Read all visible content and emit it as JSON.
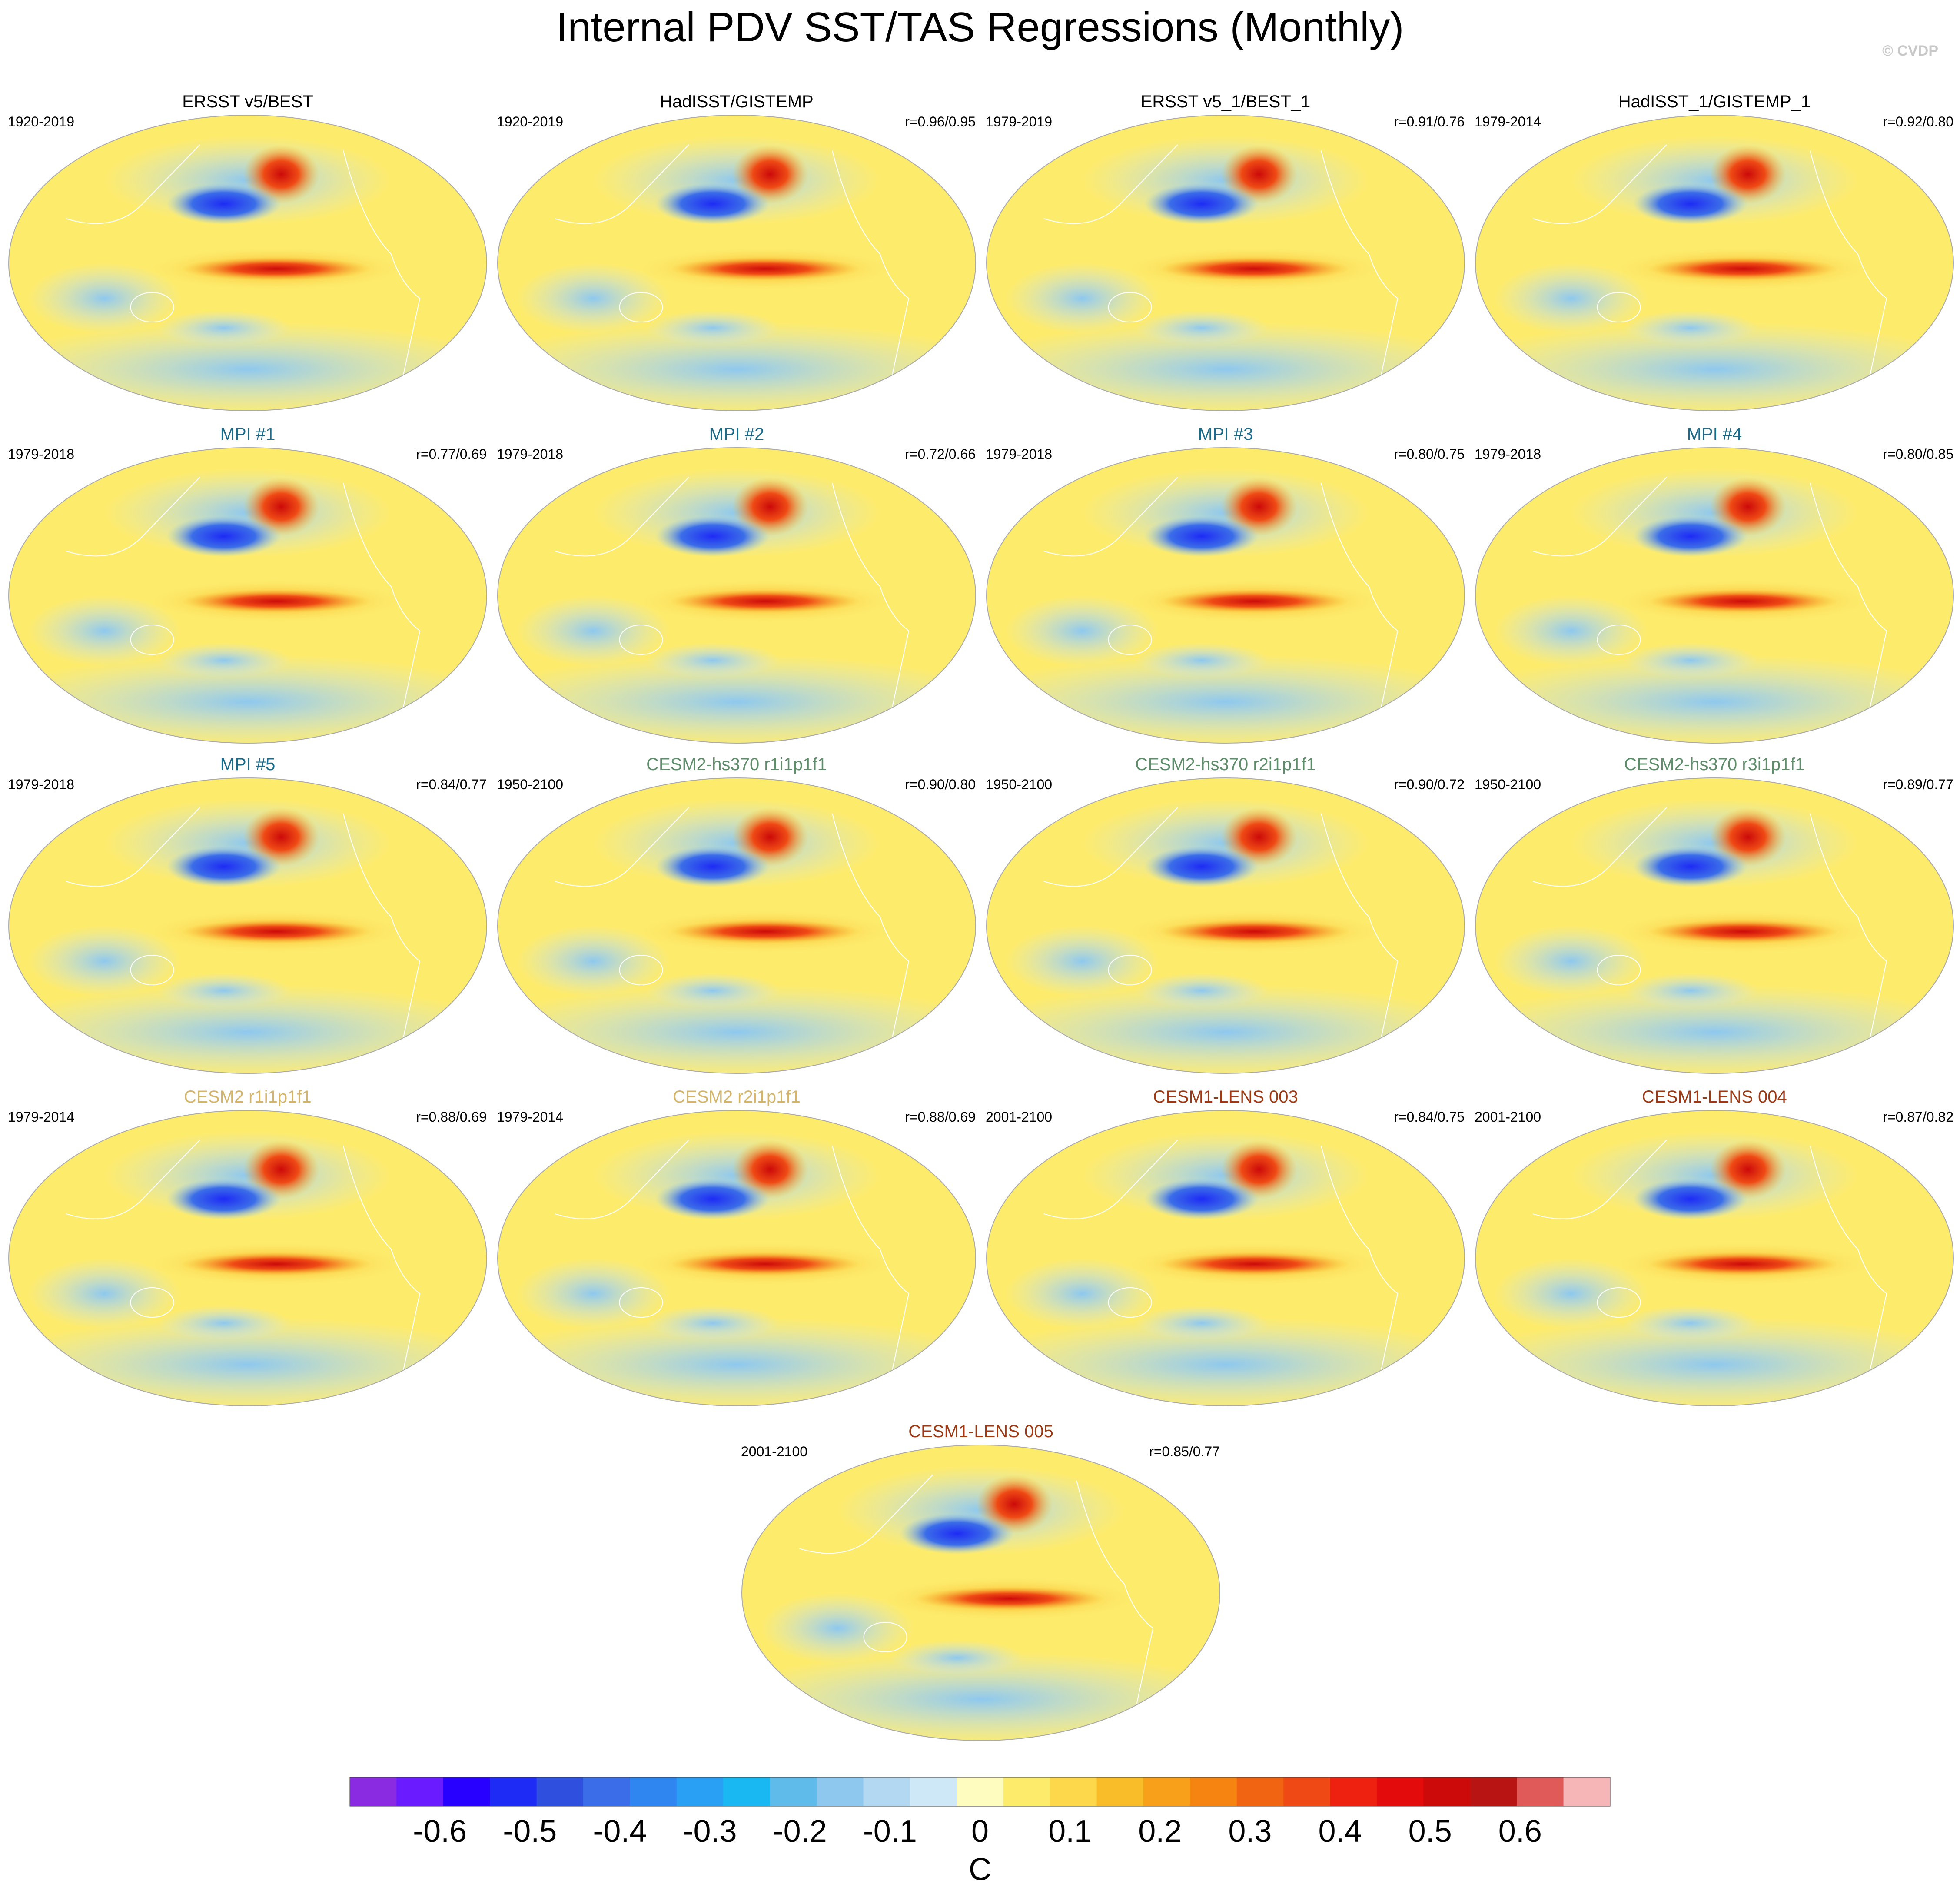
{
  "figure": {
    "title": "Internal PDV SST/TAS Regressions (Monthly)",
    "watermark": "© CVDP"
  },
  "colors": {
    "land_outline": "#ffffff",
    "map_border": "#aaaaaa",
    "obs_title": "#000000",
    "mpi_title": "#1b6a8a",
    "cesm2_hs370_title": "#5e8d6a",
    "cesm2_title": "#d3b46a",
    "cesm1_lens_title": "#9c3a16"
  },
  "chart_data": {
    "type": "heatmap",
    "projection": "Robinson (global, Pacific-centered)",
    "units": "C",
    "panels": [
      {
        "title": "ERSST v5/BEST",
        "years": "1920-2019",
        "r": "",
        "group": "obs"
      },
      {
        "title": "HadISST/GISTEMP",
        "years": "1920-2019",
        "r": "r=0.96/0.95",
        "group": "obs"
      },
      {
        "title": "ERSST v5_1/BEST_1",
        "years": "1979-2019",
        "r": "r=0.91/0.76",
        "group": "obs"
      },
      {
        "title": "HadISST_1/GISTEMP_1",
        "years": "1979-2014",
        "r": "r=0.92/0.80",
        "group": "obs"
      },
      {
        "title": "MPI #1",
        "years": "1979-2018",
        "r": "r=0.77/0.69",
        "group": "mpi"
      },
      {
        "title": "MPI #2",
        "years": "1979-2018",
        "r": "r=0.72/0.66",
        "group": "mpi"
      },
      {
        "title": "MPI #3",
        "years": "1979-2018",
        "r": "r=0.80/0.75",
        "group": "mpi"
      },
      {
        "title": "MPI #4",
        "years": "1979-2018",
        "r": "r=0.80/0.85",
        "group": "mpi"
      },
      {
        "title": "MPI #5",
        "years": "1979-2018",
        "r": "r=0.84/0.77",
        "group": "mpi"
      },
      {
        "title": "CESM2-hs370 r1i1p1f1",
        "years": "1950-2100",
        "r": "r=0.90/0.80",
        "group": "hs370"
      },
      {
        "title": "CESM2-hs370 r2i1p1f1",
        "years": "1950-2100",
        "r": "r=0.90/0.72",
        "group": "hs370"
      },
      {
        "title": "CESM2-hs370 r3i1p1f1",
        "years": "1950-2100",
        "r": "r=0.89/0.77",
        "group": "hs370"
      },
      {
        "title": "CESM2 r1i1p1f1",
        "years": "1979-2014",
        "r": "r=0.88/0.69",
        "group": "cesm2"
      },
      {
        "title": "CESM2 r2i1p1f1",
        "years": "1979-2014",
        "r": "r=0.88/0.69",
        "group": "cesm2"
      },
      {
        "title": "CESM1-LENS 003",
        "years": "2001-2100",
        "r": "r=0.84/0.75",
        "group": "lens"
      },
      {
        "title": "CESM1-LENS 004",
        "years": "2001-2100",
        "r": "r=0.87/0.82",
        "group": "lens"
      },
      {
        "title": "CESM1-LENS 005",
        "years": "2001-2100",
        "r": "r=0.85/0.77",
        "group": "lens"
      }
    ],
    "colorbar": {
      "label": "C",
      "tick_labels": [
        "-0.6",
        "-0.5",
        "-0.4",
        "-0.3",
        "-0.2",
        "-0.1",
        "0",
        "0.1",
        "0.2",
        "0.3",
        "0.4",
        "0.5",
        "0.6"
      ],
      "range": [
        -0.7,
        0.7
      ],
      "step": 0.05,
      "colors": [
        "#8a2be2",
        "#6a1bff",
        "#2800ff",
        "#1e2bf5",
        "#2f4fdf",
        "#3b6de8",
        "#2f86f1",
        "#2aa0f5",
        "#1ab8f2",
        "#5fbcea",
        "#8ec8ee",
        "#b3d9f2",
        "#cfe8f7",
        "#fffcc0",
        "#fdeb6c",
        "#fcd84a",
        "#f9bd2a",
        "#f8a01a",
        "#f58410",
        "#f16512",
        "#ef4a15",
        "#ee2010",
        "#e30b0b",
        "#cc0a0a",
        "#b91414",
        "#e15a5a",
        "#f6b5b7"
      ]
    }
  }
}
